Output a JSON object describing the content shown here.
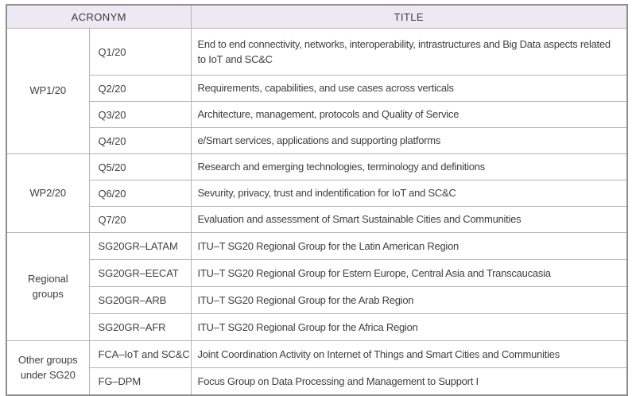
{
  "header": {
    "acronym": "ACRONYM",
    "title": "TITLE"
  },
  "groups": [
    {
      "name": "WP1/20",
      "rows": [
        {
          "acronym": "Q1/20",
          "title": "End to end connectivity, networks, interoperability, intrastructures and Big Data aspects related to IoT and SC&C"
        },
        {
          "acronym": "Q2/20",
          "title": "Requirements, capabilities, and use cases across verticals"
        },
        {
          "acronym": "Q3/20",
          "title": "Architecture, management, protocols and Quality of Service"
        },
        {
          "acronym": "Q4/20",
          "title": "e/Smart services, applications and supporting platforms"
        }
      ]
    },
    {
      "name": "WP2/20",
      "rows": [
        {
          "acronym": "Q5/20",
          "title": "Research and emerging technologies, terminology and definitions"
        },
        {
          "acronym": "Q6/20",
          "title": "Sevurity, privacy, trust and indentification for IoT and SC&C"
        },
        {
          "acronym": "Q7/20",
          "title": "Evaluation and assessment of Smart Sustainable Cities and Communities"
        }
      ]
    },
    {
      "name": "Regional groups",
      "rows": [
        {
          "acronym": "SG20GR–LATAM",
          "title": "ITU–T SG20 Regional Group for the Latin American Region"
        },
        {
          "acronym": "SG20GR–EECAT",
          "title": "ITU–T SG20 Regional Group for Estern Europe, Central Asia and Transcaucasia"
        },
        {
          "acronym": "SG20GR–ARB",
          "title": "ITU–T SG20 Regional Group for the Arab Region"
        },
        {
          "acronym": "SG20GR–AFR",
          "title": "ITU–T SG20 Regional Group for the Africa Region"
        }
      ]
    },
    {
      "name": "Other groups under SG20",
      "rows": [
        {
          "acronym": "FCA–IoT and SC&C",
          "title": "Joint Coordination Activity on Internet of Things and Smart Cities and Communities"
        },
        {
          "acronym": "FG–DPM",
          "title": "Focus Group on Data Processing and Management to Support I"
        }
      ]
    }
  ],
  "colors": {
    "header_bg": "#ECE9F5",
    "grid_border": "#B3B3B3",
    "outer_border": "#8F8F8F",
    "text": "#3F3F3F"
  }
}
